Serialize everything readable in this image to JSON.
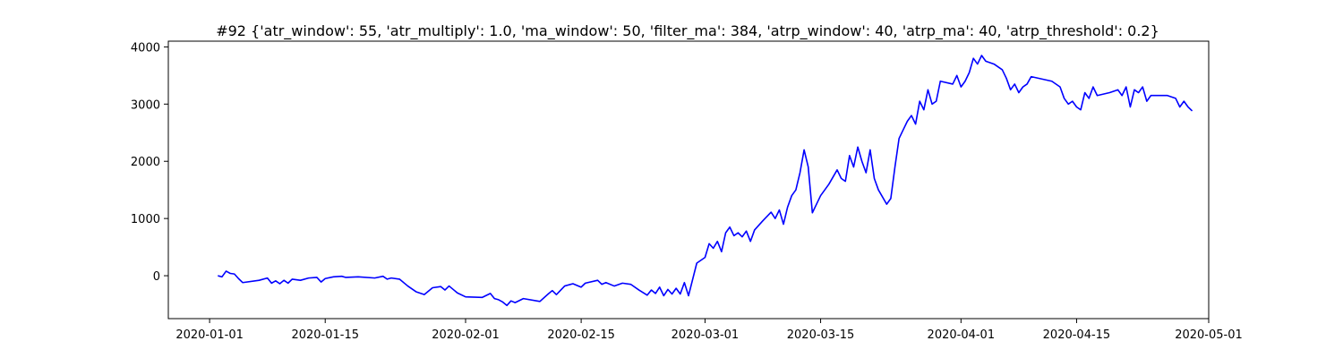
{
  "chart_data": {
    "type": "line",
    "title": "#92 {'atr_window': 55, 'atr_multiply': 1.0, 'ma_window': 50, 'filter_ma': 384, 'atrp_window': 40, 'atrp_ma': 40, 'atrp_threshold': 0.2}",
    "xlabel": "",
    "ylabel": "",
    "x_axis_type": "date",
    "xlim": [
      "2019-12-27",
      "2020-05-01"
    ],
    "ylim": [
      -750,
      4100
    ],
    "x_ticks": [
      "2020-01-01",
      "2020-01-15",
      "2020-02-01",
      "2020-02-15",
      "2020-03-01",
      "2020-03-15",
      "2020-04-01",
      "2020-04-15",
      "2020-05-01"
    ],
    "y_ticks": [
      0,
      1000,
      2000,
      3000,
      4000
    ],
    "grid": false,
    "series": [
      {
        "color": "#0000ff",
        "points": [
          [
            "2020-01-02",
            0
          ],
          [
            "2020-01-02T12:00",
            -20
          ],
          [
            "2020-01-03",
            80
          ],
          [
            "2020-01-03T12:00",
            40
          ],
          [
            "2020-01-04",
            30
          ],
          [
            "2020-01-04T12:00",
            -50
          ],
          [
            "2020-01-05",
            -120
          ],
          [
            "2020-01-07",
            -80
          ],
          [
            "2020-01-08",
            -40
          ],
          [
            "2020-01-08T12:00",
            -130
          ],
          [
            "2020-01-09",
            -90
          ],
          [
            "2020-01-09T12:00",
            -140
          ],
          [
            "2020-01-10",
            -80
          ],
          [
            "2020-01-10T12:00",
            -130
          ],
          [
            "2020-01-11",
            -60
          ],
          [
            "2020-01-12",
            -80
          ],
          [
            "2020-01-13",
            -40
          ],
          [
            "2020-01-14",
            -30
          ],
          [
            "2020-01-14T12:00",
            -110
          ],
          [
            "2020-01-15",
            -50
          ],
          [
            "2020-01-16",
            -20
          ],
          [
            "2020-01-17",
            -10
          ],
          [
            "2020-01-17T12:00",
            -30
          ],
          [
            "2020-01-19",
            -20
          ],
          [
            "2020-01-21",
            -40
          ],
          [
            "2020-01-22",
            -10
          ],
          [
            "2020-01-22T12:00",
            -60
          ],
          [
            "2020-01-23",
            -40
          ],
          [
            "2020-01-24",
            -60
          ],
          [
            "2020-01-25",
            -180
          ],
          [
            "2020-01-26",
            -280
          ],
          [
            "2020-01-27",
            -330
          ],
          [
            "2020-01-28",
            -210
          ],
          [
            "2020-01-29",
            -190
          ],
          [
            "2020-01-29T12:00",
            -250
          ],
          [
            "2020-01-30",
            -180
          ],
          [
            "2020-01-31",
            -300
          ],
          [
            "2020-02-01",
            -370
          ],
          [
            "2020-02-03",
            -380
          ],
          [
            "2020-02-04",
            -310
          ],
          [
            "2020-02-04T12:00",
            -400
          ],
          [
            "2020-02-05",
            -420
          ],
          [
            "2020-02-05T12:00",
            -460
          ],
          [
            "2020-02-06",
            -520
          ],
          [
            "2020-02-06T12:00",
            -440
          ],
          [
            "2020-02-07",
            -470
          ],
          [
            "2020-02-08",
            -400
          ],
          [
            "2020-02-10",
            -450
          ],
          [
            "2020-02-11",
            -320
          ],
          [
            "2020-02-11T12:00",
            -260
          ],
          [
            "2020-02-12",
            -330
          ],
          [
            "2020-02-13",
            -180
          ],
          [
            "2020-02-14",
            -140
          ],
          [
            "2020-02-15",
            -200
          ],
          [
            "2020-02-15T12:00",
            -130
          ],
          [
            "2020-02-17",
            -80
          ],
          [
            "2020-02-17T12:00",
            -150
          ],
          [
            "2020-02-18",
            -120
          ],
          [
            "2020-02-19",
            -180
          ],
          [
            "2020-02-20",
            -130
          ],
          [
            "2020-02-21",
            -150
          ],
          [
            "2020-02-22",
            -250
          ],
          [
            "2020-02-23",
            -340
          ],
          [
            "2020-02-23T12:00",
            -250
          ],
          [
            "2020-02-24",
            -310
          ],
          [
            "2020-02-24T12:00",
            -200
          ],
          [
            "2020-02-25",
            -350
          ],
          [
            "2020-02-25T12:00",
            -240
          ],
          [
            "2020-02-26",
            -320
          ],
          [
            "2020-02-26T12:00",
            -220
          ],
          [
            "2020-02-27",
            -320
          ],
          [
            "2020-02-27T12:00",
            -120
          ],
          [
            "2020-02-28",
            -350
          ],
          [
            "2020-02-29",
            220
          ],
          [
            "2020-03-01",
            320
          ],
          [
            "2020-03-01T12:00",
            560
          ],
          [
            "2020-03-02",
            480
          ],
          [
            "2020-03-02T12:00",
            600
          ],
          [
            "2020-03-03",
            420
          ],
          [
            "2020-03-03T12:00",
            750
          ],
          [
            "2020-03-04",
            850
          ],
          [
            "2020-03-04T12:00",
            700
          ],
          [
            "2020-03-05",
            750
          ],
          [
            "2020-03-05T12:00",
            680
          ],
          [
            "2020-03-06",
            780
          ],
          [
            "2020-03-06T12:00",
            600
          ],
          [
            "2020-03-07",
            800
          ],
          [
            "2020-03-08",
            960
          ],
          [
            "2020-03-09",
            1110
          ],
          [
            "2020-03-09T12:00",
            1000
          ],
          [
            "2020-03-10",
            1150
          ],
          [
            "2020-03-10T12:00",
            900
          ],
          [
            "2020-03-11",
            1200
          ],
          [
            "2020-03-11T12:00",
            1400
          ],
          [
            "2020-03-12",
            1500
          ],
          [
            "2020-03-12T12:00",
            1800
          ],
          [
            "2020-03-13",
            2200
          ],
          [
            "2020-03-13T12:00",
            1900
          ],
          [
            "2020-03-14",
            1100
          ],
          [
            "2020-03-14T12:00",
            1250
          ],
          [
            "2020-03-15",
            1400
          ],
          [
            "2020-03-16",
            1600
          ],
          [
            "2020-03-17",
            1850
          ],
          [
            "2020-03-17T12:00",
            1700
          ],
          [
            "2020-03-18",
            1650
          ],
          [
            "2020-03-18T12:00",
            2100
          ],
          [
            "2020-03-19",
            1900
          ],
          [
            "2020-03-19T12:00",
            2250
          ],
          [
            "2020-03-20",
            2000
          ],
          [
            "2020-03-20T12:00",
            1800
          ],
          [
            "2020-03-21",
            2200
          ],
          [
            "2020-03-21T12:00",
            1700
          ],
          [
            "2020-03-22",
            1500
          ],
          [
            "2020-03-23",
            1250
          ],
          [
            "2020-03-23T12:00",
            1350
          ],
          [
            "2020-03-24",
            1900
          ],
          [
            "2020-03-24T12:00",
            2400
          ],
          [
            "2020-03-25",
            2550
          ],
          [
            "2020-03-25T12:00",
            2700
          ],
          [
            "2020-03-26",
            2800
          ],
          [
            "2020-03-26T12:00",
            2650
          ],
          [
            "2020-03-27",
            3050
          ],
          [
            "2020-03-27T12:00",
            2900
          ],
          [
            "2020-03-28",
            3250
          ],
          [
            "2020-03-28T12:00",
            3000
          ],
          [
            "2020-03-29",
            3050
          ],
          [
            "2020-03-29T12:00",
            3400
          ],
          [
            "2020-03-31",
            3350
          ],
          [
            "2020-03-31T12:00",
            3500
          ],
          [
            "2020-04-01",
            3300
          ],
          [
            "2020-04-01T12:00",
            3400
          ],
          [
            "2020-04-02",
            3550
          ],
          [
            "2020-04-02T12:00",
            3800
          ],
          [
            "2020-04-03",
            3700
          ],
          [
            "2020-04-03T12:00",
            3850
          ],
          [
            "2020-04-04",
            3750
          ],
          [
            "2020-04-05",
            3700
          ],
          [
            "2020-04-06",
            3600
          ],
          [
            "2020-04-06T12:00",
            3450
          ],
          [
            "2020-04-07",
            3250
          ],
          [
            "2020-04-07T12:00",
            3350
          ],
          [
            "2020-04-08",
            3200
          ],
          [
            "2020-04-08T12:00",
            3300
          ],
          [
            "2020-04-09",
            3350
          ],
          [
            "2020-04-09T12:00",
            3480
          ],
          [
            "2020-04-12",
            3400
          ],
          [
            "2020-04-13",
            3300
          ],
          [
            "2020-04-13T12:00",
            3100
          ],
          [
            "2020-04-14",
            3000
          ],
          [
            "2020-04-14T12:00",
            3050
          ],
          [
            "2020-04-15",
            2950
          ],
          [
            "2020-04-15T12:00",
            2900
          ],
          [
            "2020-04-16",
            3200
          ],
          [
            "2020-04-16T12:00",
            3100
          ],
          [
            "2020-04-17",
            3300
          ],
          [
            "2020-04-17T12:00",
            3150
          ],
          [
            "2020-04-19",
            3200
          ],
          [
            "2020-04-20",
            3250
          ],
          [
            "2020-04-20T12:00",
            3150
          ],
          [
            "2020-04-21",
            3300
          ],
          [
            "2020-04-21T12:00",
            2950
          ],
          [
            "2020-04-22",
            3250
          ],
          [
            "2020-04-22T12:00",
            3200
          ],
          [
            "2020-04-23",
            3300
          ],
          [
            "2020-04-23T12:00",
            3050
          ],
          [
            "2020-04-24",
            3150
          ],
          [
            "2020-04-26",
            3150
          ],
          [
            "2020-04-27",
            3100
          ],
          [
            "2020-04-27T12:00",
            2950
          ],
          [
            "2020-04-28",
            3050
          ],
          [
            "2020-04-28T12:00",
            2950
          ],
          [
            "2020-04-29",
            2880
          ]
        ]
      }
    ]
  }
}
